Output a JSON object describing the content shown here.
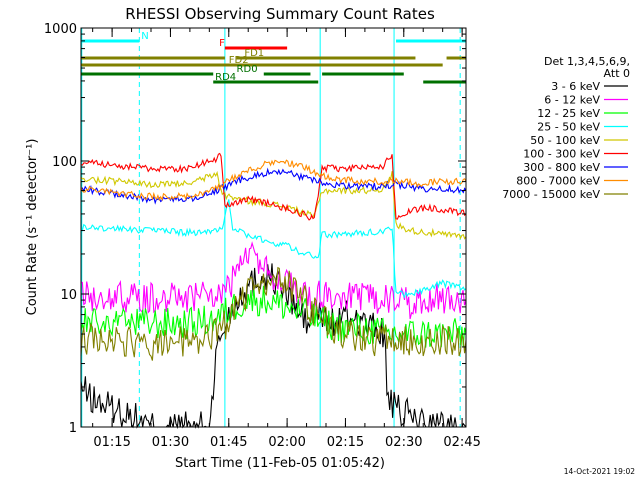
{
  "chart_data": {
    "type": "line",
    "title": "RHESSI Observing Summary Count Rates",
    "xlabel": "Start Time (11-Feb-05 01:05:42)",
    "ylabel": "Count Rate (s⁻¹ detector⁻¹)",
    "yscale": "log",
    "xlim_minutes": [
      7,
      106
    ],
    "ylim": [
      1,
      1000
    ],
    "x_ticks": [
      {
        "minute": 15,
        "label": "01:15"
      },
      {
        "minute": 30,
        "label": "01:30"
      },
      {
        "minute": 45,
        "label": "01:45"
      },
      {
        "minute": 60,
        "label": "02:00"
      },
      {
        "minute": 75,
        "label": "02:15"
      },
      {
        "minute": 90,
        "label": "02:30"
      },
      {
        "minute": 105,
        "label": "02:45"
      }
    ],
    "y_ticks": [
      {
        "value": 1,
        "label": "1"
      },
      {
        "value": 10,
        "label": "10"
      },
      {
        "value": 100,
        "label": "100"
      },
      {
        "value": 1000,
        "label": "1000"
      }
    ],
    "legend_header": [
      "Det 1,3,4,5,6,9,",
      "Att 0"
    ],
    "legend_position": "top-right",
    "timestamp": "14-Oct-2021 19:02",
    "series": [
      {
        "name": "3 - 6 keV",
        "color": "#000000",
        "points": [
          [
            7,
            2
          ],
          [
            10,
            1.6
          ],
          [
            15,
            1.4
          ],
          [
            20,
            1.2
          ],
          [
            25,
            1
          ],
          [
            30,
            1
          ],
          [
            40,
            1
          ],
          [
            42,
            4
          ],
          [
            45,
            7
          ],
          [
            48,
            10
          ],
          [
            52,
            13
          ],
          [
            55,
            14
          ],
          [
            58,
            12
          ],
          [
            62,
            8
          ],
          [
            65,
            6
          ],
          [
            68,
            7
          ],
          [
            72,
            6
          ],
          [
            76,
            7
          ],
          [
            80,
            6
          ],
          [
            85,
            5
          ],
          [
            86,
            1.5
          ],
          [
            89,
            1.3
          ],
          [
            92,
            1.2
          ],
          [
            95,
            1.1
          ],
          [
            100,
            1
          ],
          [
            106,
            1
          ]
        ]
      },
      {
        "name": "6 - 12 keV",
        "color": "#ff00ff",
        "points": [
          [
            7,
            9.5
          ],
          [
            15,
            9.5
          ],
          [
            25,
            9.3
          ],
          [
            35,
            9.5
          ],
          [
            42,
            10
          ],
          [
            45,
            11
          ],
          [
            47,
            14
          ],
          [
            49,
            18
          ],
          [
            51,
            20
          ],
          [
            53,
            18
          ],
          [
            55,
            15
          ],
          [
            58,
            13
          ],
          [
            61,
            11
          ],
          [
            65,
            10
          ],
          [
            70,
            9.5
          ],
          [
            75,
            9.4
          ],
          [
            80,
            9.3
          ],
          [
            85,
            9.3
          ],
          [
            88,
            9
          ],
          [
            92,
            8.5
          ],
          [
            96,
            9
          ],
          [
            100,
            9.3
          ],
          [
            103,
            9.5
          ],
          [
            106,
            9
          ]
        ]
      },
      {
        "name": "12 - 25 keV",
        "color": "#00ff00",
        "points": [
          [
            7,
            6
          ],
          [
            15,
            6
          ],
          [
            25,
            6
          ],
          [
            35,
            6
          ],
          [
            42,
            6.5
          ],
          [
            46,
            8
          ],
          [
            50,
            9
          ],
          [
            55,
            9
          ],
          [
            60,
            8
          ],
          [
            65,
            7
          ],
          [
            70,
            6
          ],
          [
            75,
            5.5
          ],
          [
            80,
            5.5
          ],
          [
            85,
            5
          ],
          [
            88,
            5
          ],
          [
            92,
            5
          ],
          [
            96,
            5
          ],
          [
            100,
            5
          ],
          [
            106,
            5
          ]
        ]
      },
      {
        "name": "25 - 50 keV",
        "color": "#00ffff",
        "points": [
          [
            7,
            32
          ],
          [
            15,
            31
          ],
          [
            25,
            30
          ],
          [
            35,
            29
          ],
          [
            41,
            30
          ],
          [
            42,
            30
          ],
          [
            43,
            30
          ],
          [
            45,
            50
          ],
          [
            46,
            32
          ],
          [
            50,
            27
          ],
          [
            55,
            25
          ],
          [
            60,
            23
          ],
          [
            63,
            21
          ],
          [
            65,
            20
          ],
          [
            68,
            19
          ],
          [
            69,
            28
          ],
          [
            75,
            28
          ],
          [
            80,
            29
          ],
          [
            85,
            30
          ],
          [
            86,
            32
          ],
          [
            87,
            32
          ],
          [
            88,
            10
          ],
          [
            92,
            10
          ],
          [
            96,
            11
          ],
          [
            100,
            12
          ],
          [
            106,
            11
          ]
        ]
      },
      {
        "name": "50 - 100 keV",
        "color": "#d0c800",
        "points": [
          [
            7,
            73
          ],
          [
            15,
            71
          ],
          [
            25,
            66
          ],
          [
            35,
            68
          ],
          [
            42,
            80
          ],
          [
            43,
            60
          ],
          [
            44,
            55
          ],
          [
            50,
            50
          ],
          [
            55,
            48
          ],
          [
            60,
            45
          ],
          [
            65,
            40
          ],
          [
            67,
            38
          ],
          [
            69,
            60
          ],
          [
            75,
            60
          ],
          [
            80,
            60
          ],
          [
            85,
            62
          ],
          [
            87,
            80
          ],
          [
            88,
            33
          ],
          [
            92,
            30
          ],
          [
            96,
            29
          ],
          [
            100,
            28
          ],
          [
            106,
            27
          ]
        ]
      },
      {
        "name": "100 - 300 keV",
        "color": "#ff0000",
        "points": [
          [
            7,
            98
          ],
          [
            15,
            93
          ],
          [
            25,
            87
          ],
          [
            35,
            88
          ],
          [
            42,
            105
          ],
          [
            43,
            110
          ],
          [
            44,
            45
          ],
          [
            50,
            52
          ],
          [
            55,
            48
          ],
          [
            60,
            44
          ],
          [
            65,
            39
          ],
          [
            67,
            36
          ],
          [
            69,
            88
          ],
          [
            75,
            88
          ],
          [
            80,
            88
          ],
          [
            85,
            92
          ],
          [
            86,
            105
          ],
          [
            87,
            108
          ],
          [
            88,
            38
          ],
          [
            92,
            42
          ],
          [
            96,
            45
          ],
          [
            100,
            43
          ],
          [
            106,
            40
          ]
        ]
      },
      {
        "name": "300 - 800 keV",
        "color": "#0000ff",
        "points": [
          [
            7,
            62
          ],
          [
            15,
            57
          ],
          [
            25,
            51
          ],
          [
            35,
            52
          ],
          [
            42,
            60
          ],
          [
            48,
            72
          ],
          [
            55,
            82
          ],
          [
            60,
            82
          ],
          [
            65,
            74
          ],
          [
            68,
            70
          ],
          [
            72,
            66
          ],
          [
            78,
            64
          ],
          [
            85,
            65
          ],
          [
            88,
            67
          ],
          [
            92,
            64
          ],
          [
            96,
            61
          ],
          [
            100,
            62
          ],
          [
            106,
            60
          ]
        ]
      },
      {
        "name": "800 - 7000 keV",
        "color": "#ff8c00",
        "points": [
          [
            7,
            62
          ],
          [
            15,
            58
          ],
          [
            25,
            54
          ],
          [
            35,
            54
          ],
          [
            42,
            63
          ],
          [
            48,
            80
          ],
          [
            55,
            96
          ],
          [
            58,
            98
          ],
          [
            62,
            95
          ],
          [
            66,
            85
          ],
          [
            68,
            80
          ],
          [
            72,
            74
          ],
          [
            78,
            70
          ],
          [
            84,
            70
          ],
          [
            88,
            72
          ],
          [
            92,
            68
          ],
          [
            96,
            68
          ],
          [
            100,
            70
          ],
          [
            106,
            70
          ]
        ]
      },
      {
        "name": "7000 - 15000 keV",
        "color": "#808000",
        "points": [
          [
            7,
            4.5
          ],
          [
            15,
            4.5
          ],
          [
            25,
            4
          ],
          [
            35,
            4.5
          ],
          [
            42,
            5
          ],
          [
            46,
            7
          ],
          [
            50,
            10
          ],
          [
            55,
            12
          ],
          [
            58,
            13
          ],
          [
            62,
            11
          ],
          [
            66,
            8
          ],
          [
            70,
            6
          ],
          [
            75,
            5
          ],
          [
            80,
            4.5
          ],
          [
            85,
            4.5
          ],
          [
            90,
            4.5
          ],
          [
            95,
            4.5
          ],
          [
            100,
            4.5
          ],
          [
            106,
            4.5
          ]
        ]
      }
    ],
    "state_bars": [
      {
        "name": "N",
        "color": "#00ffff",
        "segments": [
          [
            7,
            22
          ],
          [
            88,
            106
          ]
        ]
      },
      {
        "name": "F",
        "color": "#ff0000",
        "segments": [
          [
            44,
            60
          ]
        ]
      },
      {
        "name": "FD1",
        "color": "#808000",
        "segments": [
          [
            7,
            44
          ],
          [
            47,
            93
          ],
          [
            101,
            106
          ]
        ]
      },
      {
        "name": "FD2",
        "color": "#808000",
        "segments": [
          [
            7,
            100
          ]
        ]
      },
      {
        "name": "RD0",
        "color": "#007000",
        "segments": [
          [
            7,
            41
          ],
          [
            54,
            66
          ],
          [
            69,
            90
          ]
        ]
      },
      {
        "name": "RD4",
        "color": "#007000",
        "segments": [
          [
            41,
            68
          ],
          [
            95,
            106
          ]
        ]
      }
    ],
    "markers": [
      {
        "minute": 7.2,
        "color": "#00ffff",
        "style": "solid"
      },
      {
        "minute": 22,
        "color": "#00ffff",
        "style": "dashed"
      },
      {
        "minute": 44,
        "color": "#00ffff",
        "style": "solid"
      },
      {
        "minute": 68.5,
        "color": "#00ffff",
        "style": "solid"
      },
      {
        "minute": 87.5,
        "color": "#00ffff",
        "style": "solid"
      },
      {
        "minute": 104.5,
        "color": "#00ffff",
        "style": "dashed"
      }
    ]
  }
}
